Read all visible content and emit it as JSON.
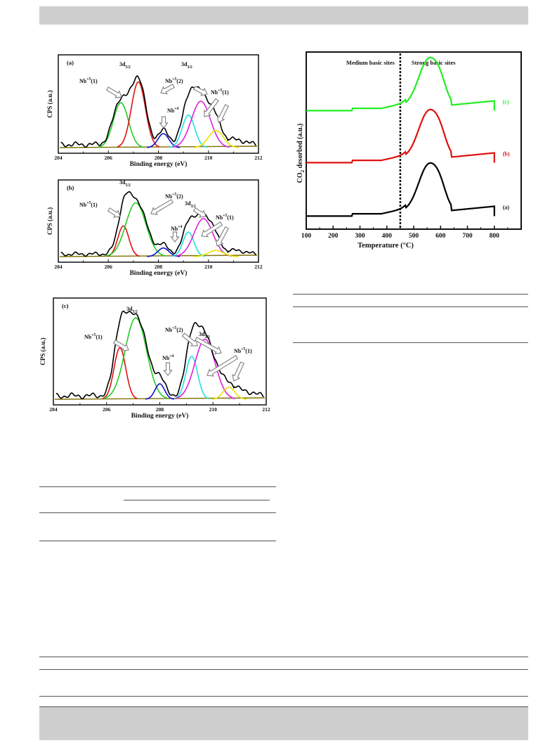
{
  "xps_panels": [
    {
      "tag": "(a)",
      "xlabel": "Binding energy (eV)",
      "ylabel": "CPS (a.u.)",
      "xticks": [
        "204",
        "206",
        "208",
        "210",
        "212"
      ],
      "labels": [
        {
          "text": "3d",
          "sub": "5/2"
        },
        {
          "text": "Nb",
          "sup": "+5",
          "tail": "(1)"
        },
        {
          "text": "Nb",
          "sup": "+5",
          "tail": "(2)"
        },
        {
          "text": "Nb",
          "sup": "+4",
          "tail": ""
        },
        {
          "text": "3d",
          "sub": "3/2"
        },
        {
          "text": "Nb",
          "sup": "+5",
          "tail": "(1)"
        }
      ]
    },
    {
      "tag": "(b)",
      "xlabel": "Binding energy (eV)",
      "ylabel": "CPS (a.u.)",
      "xticks": [
        "204",
        "206",
        "208",
        "210",
        "212"
      ],
      "labels": [
        {
          "text": "3d",
          "sub": "5/2"
        },
        {
          "text": "Nb",
          "sup": "+5",
          "tail": "(1)"
        },
        {
          "text": "Nb",
          "sup": "+5",
          "tail": "(2)"
        },
        {
          "text": "Nb",
          "sup": "+4",
          "tail": ""
        },
        {
          "text": "3d",
          "sub": "3/2"
        },
        {
          "text": "Nb",
          "sup": "+5",
          "tail": "(1)"
        }
      ]
    },
    {
      "tag": "(c)",
      "xlabel": "Binding energy (eV)",
      "ylabel": "CPS (a.u.)",
      "xticks": [
        "204",
        "206",
        "208",
        "210",
        "212"
      ],
      "labels": [
        {
          "text": "3d",
          "sub": "5/2"
        },
        {
          "text": "Nb",
          "sup": "+5",
          "tail": "(1)"
        },
        {
          "text": "Nb",
          "sup": "+5",
          "tail": "(2)"
        },
        {
          "text": "Nb",
          "sup": "+4",
          "tail": ""
        },
        {
          "text": "3d",
          "sub": "3/2"
        },
        {
          "text": "Nb",
          "sup": "+5",
          "tail": "(1)"
        }
      ]
    }
  ],
  "tpd": {
    "ylabel_main": "CO",
    "ylabel_sub": "2",
    "ylabel_rest": " desorbed (a.u.)",
    "xlabel": "Temperature (°C)",
    "region_left": "Medium basic sites",
    "region_right": "Strong basic sites",
    "xticks": [
      "100",
      "200",
      "300",
      "400",
      "500",
      "600",
      "700",
      "800"
    ],
    "series_tags": [
      "(a)",
      "(b)",
      "(c)"
    ]
  },
  "colors": {
    "band": "#cfcfcf",
    "fit_green": "#22cc22",
    "fit_red": "#e01010",
    "fit_blue": "#1010cc",
    "fit_cyan": "#22e0e0",
    "fit_magenta": "#e020e0",
    "fit_yellow": "#e8e000",
    "envelope": "#000000",
    "baseline": "#807000",
    "tpd_black": "#000000",
    "tpd_red": "#e01010",
    "tpd_green": "#22ee22"
  },
  "chart_data": [
    {
      "type": "line",
      "title": "(a)",
      "xlabel": "Binding energy (eV)",
      "ylabel": "CPS (a.u.)",
      "xlim": [
        204,
        212
      ],
      "series": [
        {
          "name": "Nb+5(1)",
          "color": "#22cc22",
          "center": 206.5,
          "height": 0.58,
          "width": 0.3
        },
        {
          "name": "3d5/2",
          "color": "#e01010",
          "center": 207.2,
          "height": 0.85,
          "width": 0.28
        },
        {
          "name": "Nb+4",
          "color": "#1010cc",
          "center": 208.2,
          "height": 0.18,
          "width": 0.22
        },
        {
          "name": "Nb+5(2)",
          "color": "#22e0e0",
          "center": 209.2,
          "height": 0.42,
          "width": 0.25
        },
        {
          "name": "3d3/2",
          "color": "#e020e0",
          "center": 209.7,
          "height": 0.6,
          "width": 0.38
        },
        {
          "name": "Nb+5(1)",
          "color": "#e8e000",
          "center": 210.3,
          "height": 0.22,
          "width": 0.3
        }
      ]
    },
    {
      "type": "line",
      "title": "(b)",
      "xlabel": "Binding energy (eV)",
      "ylabel": "CPS (a.u.)",
      "xlim": [
        204,
        212
      ],
      "series": [
        {
          "name": "Nb+5(1)",
          "color": "#e01010",
          "center": 206.6,
          "height": 0.5,
          "width": 0.22
        },
        {
          "name": "3d5/2",
          "color": "#22cc22",
          "center": 207.1,
          "height": 0.88,
          "width": 0.4
        },
        {
          "name": "Nb+4",
          "color": "#1010cc",
          "center": 208.2,
          "height": 0.14,
          "width": 0.22
        },
        {
          "name": "Nb+5(2)",
          "color": "#22e0e0",
          "center": 209.2,
          "height": 0.4,
          "width": 0.22
        },
        {
          "name": "3d3/2",
          "color": "#e020e0",
          "center": 209.8,
          "height": 0.62,
          "width": 0.38
        },
        {
          "name": "Nb+5(1)",
          "color": "#e8e000",
          "center": 210.3,
          "height": 0.1,
          "width": 0.3
        }
      ]
    },
    {
      "type": "line",
      "title": "(c)",
      "xlabel": "Binding energy (eV)",
      "ylabel": "CPS (a.u.)",
      "xlim": [
        204,
        212
      ],
      "series": [
        {
          "name": "Nb+5(1)",
          "color": "#e01010",
          "center": 206.5,
          "height": 0.6,
          "width": 0.22
        },
        {
          "name": "3d5/2",
          "color": "#22cc22",
          "center": 207.1,
          "height": 0.95,
          "width": 0.4
        },
        {
          "name": "Nb+4",
          "color": "#1010cc",
          "center": 208.0,
          "height": 0.18,
          "width": 0.18
        },
        {
          "name": "Nb+5(2)",
          "color": "#22e0e0",
          "center": 209.2,
          "height": 0.5,
          "width": 0.22
        },
        {
          "name": "3d3/2",
          "color": "#e020e0",
          "center": 209.7,
          "height": 0.7,
          "width": 0.38
        },
        {
          "name": "Nb+5(1)",
          "color": "#e8e000",
          "center": 210.6,
          "height": 0.14,
          "width": 0.22
        }
      ]
    },
    {
      "type": "line",
      "title": "",
      "xlabel": "Temperature (°C)",
      "ylabel": "CO2 desorbed (a.u.)",
      "xlim": [
        100,
        900
      ],
      "divider_x": 450,
      "series": [
        {
          "name": "(a)",
          "color": "#000000",
          "x": [
            100,
            200,
            260,
            280,
            400,
            440,
            480,
            520,
            560,
            600,
            640,
            700,
            800
          ],
          "y": [
            0.05,
            0.06,
            0.08,
            0.12,
            0.15,
            0.22,
            0.45,
            0.85,
            1.0,
            0.7,
            0.2,
            0.18,
            0.22
          ]
        },
        {
          "name": "(b)",
          "color": "#e01010",
          "x": [
            100,
            200,
            260,
            280,
            400,
            440,
            480,
            520,
            560,
            600,
            640,
            700,
            800
          ],
          "y": [
            0.05,
            0.06,
            0.08,
            0.12,
            0.15,
            0.22,
            0.45,
            0.85,
            1.0,
            0.7,
            0.2,
            0.18,
            0.22
          ]
        },
        {
          "name": "(c)",
          "color": "#22ee22",
          "x": [
            100,
            200,
            260,
            280,
            400,
            440,
            480,
            520,
            560,
            600,
            640,
            700,
            800
          ],
          "y": [
            0.05,
            0.06,
            0.08,
            0.12,
            0.15,
            0.22,
            0.45,
            0.85,
            1.0,
            0.7,
            0.2,
            0.18,
            0.22
          ]
        }
      ]
    }
  ]
}
